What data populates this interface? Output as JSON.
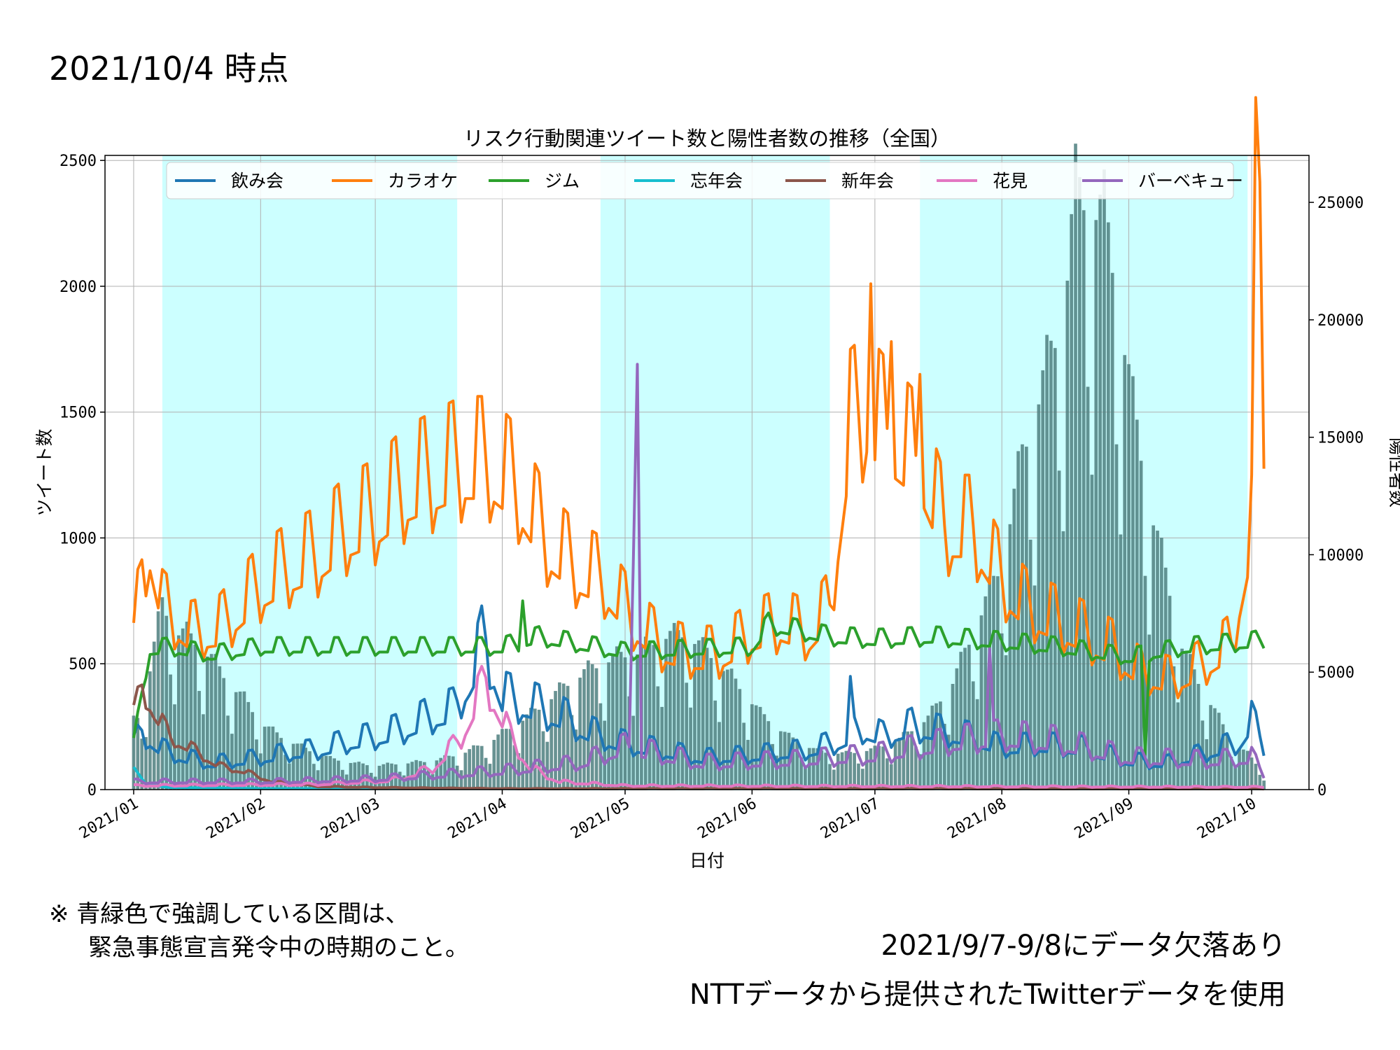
{
  "page": {
    "title": "2021/10/4 時点",
    "note_line1": "※ 青緑色で強調している区間は、",
    "note_line2": "緊急事態宣言発令中の時期のこと。",
    "missing_note": "2021/9/7-9/8にデータ欠落あり",
    "source_note": "NTTデータから提供されたTwitterデータを使用"
  },
  "chart_data": {
    "type": "line",
    "title": "リスク行動関連ツイート数と陽性者数の推移（全国）",
    "xlabel": "日付",
    "ylabel": "ツイート数",
    "ylabel_right": "陽性者数",
    "x_range": [
      "2020-12-25",
      "2021-10-15"
    ],
    "ylim": [
      0,
      2520
    ],
    "ylim_right": [
      0,
      27000
    ],
    "x_tick_labels": [
      "2021/01",
      "2021/02",
      "2021/03",
      "2021/04",
      "2021/05",
      "2021/06",
      "2021/07",
      "2021/08",
      "2021/09",
      "2021/10"
    ],
    "x_tick_dates": [
      "2021-01-01",
      "2021-02-01",
      "2021-03-01",
      "2021-04-01",
      "2021-05-01",
      "2021-06-01",
      "2021-07-01",
      "2021-08-01",
      "2021-09-01",
      "2021-10-01"
    ],
    "y_ticks": [
      0,
      500,
      1000,
      1500,
      2000,
      2500
    ],
    "y_ticks_right": [
      0,
      5000,
      10000,
      15000,
      20000,
      25000
    ],
    "grid": true,
    "legend_position": "top",
    "emergency_periods": [
      [
        "2021-01-08",
        "2021-03-21"
      ],
      [
        "2021-04-25",
        "2021-06-20"
      ],
      [
        "2021-07-12",
        "2021-09-30"
      ]
    ],
    "emergency_color": "#ccffff",
    "bar_color": "#4d7f7f",
    "positive_cases": {
      "name": "陽性者数",
      "keys": [
        [
          "2021-01-01",
          3000
        ],
        [
          "2021-01-03",
          3100
        ],
        [
          "2021-01-06",
          6000
        ],
        [
          "2021-01-08",
          7800
        ],
        [
          "2021-01-11",
          6600
        ],
        [
          "2021-01-14",
          6500
        ],
        [
          "2021-01-17",
          6000
        ],
        [
          "2021-01-20",
          5500
        ],
        [
          "2021-01-24",
          4500
        ],
        [
          "2021-01-28",
          3800
        ],
        [
          "2021-02-01",
          2800
        ],
        [
          "2021-02-06",
          2200
        ],
        [
          "2021-02-12",
          1700
        ],
        [
          "2021-02-18",
          1300
        ],
        [
          "2021-02-24",
          1100
        ],
        [
          "2021-03-01",
          1000
        ],
        [
          "2021-03-08",
          1100
        ],
        [
          "2021-03-15",
          1200
        ],
        [
          "2021-03-22",
          1500
        ],
        [
          "2021-03-29",
          2000
        ],
        [
          "2021-04-04",
          2700
        ],
        [
          "2021-04-10",
          3400
        ],
        [
          "2021-04-16",
          4300
        ],
        [
          "2021-04-22",
          5000
        ],
        [
          "2021-04-28",
          5500
        ],
        [
          "2021-05-05",
          5800
        ],
        [
          "2021-05-10",
          6400
        ],
        [
          "2021-05-16",
          6500
        ],
        [
          "2021-05-22",
          5600
        ],
        [
          "2021-05-28",
          4500
        ],
        [
          "2021-06-03",
          3200
        ],
        [
          "2021-06-10",
          2200
        ],
        [
          "2021-06-17",
          1600
        ],
        [
          "2021-06-24",
          1500
        ],
        [
          "2021-07-01",
          1700
        ],
        [
          "2021-07-07",
          2100
        ],
        [
          "2021-07-14",
          3000
        ],
        [
          "2021-07-20",
          4500
        ],
        [
          "2021-07-26",
          7000
        ],
        [
          "2021-08-01",
          9500
        ],
        [
          "2021-08-06",
          14000
        ],
        [
          "2021-08-11",
          17000
        ],
        [
          "2021-08-16",
          20000
        ],
        [
          "2021-08-19",
          25000
        ],
        [
          "2021-08-22",
          24500
        ],
        [
          "2021-08-26",
          24000
        ],
        [
          "2021-08-29",
          21000
        ],
        [
          "2021-09-02",
          16000
        ],
        [
          "2021-09-06",
          12000
        ],
        [
          "2021-09-10",
          9000
        ],
        [
          "2021-09-14",
          6000
        ],
        [
          "2021-09-18",
          4500
        ],
        [
          "2021-09-22",
          3300
        ],
        [
          "2021-09-26",
          2000
        ],
        [
          "2021-09-30",
          1500
        ],
        [
          "2021-10-04",
          700
        ]
      ],
      "weekday_factors": [
        0.7,
        0.55,
        1.0,
        1.05,
        1.1,
        1.05,
        1.0
      ]
    },
    "series": [
      {
        "name": "飲み会",
        "color": "#1f77b4",
        "keys": [
          [
            "2021-01-01",
            160
          ],
          [
            "2021-01-03",
            220
          ],
          [
            "2021-01-08",
            150
          ],
          [
            "2021-01-14",
            120
          ],
          [
            "2021-01-20",
            100
          ],
          [
            "2021-02-01",
            120
          ],
          [
            "2021-02-08",
            140
          ],
          [
            "2021-02-15",
            150
          ],
          [
            "2021-02-22",
            180
          ],
          [
            "2021-03-01",
            200
          ],
          [
            "2021-03-08",
            230
          ],
          [
            "2021-03-15",
            280
          ],
          [
            "2021-03-20",
            300
          ],
          [
            "2021-03-24",
            420
          ],
          [
            "2021-03-28",
            560
          ],
          [
            "2021-04-01",
            350
          ],
          [
            "2021-04-08",
            320
          ],
          [
            "2021-04-15",
            280
          ],
          [
            "2021-04-22",
            220
          ],
          [
            "2021-04-29",
            180
          ],
          [
            "2021-05-06",
            160
          ],
          [
            "2021-05-13",
            140
          ],
          [
            "2021-05-20",
            120
          ],
          [
            "2021-06-01",
            130
          ],
          [
            "2021-06-15",
            150
          ],
          [
            "2021-06-22",
            180
          ],
          [
            "2021-06-28",
            230
          ],
          [
            "2021-07-03",
            200
          ],
          [
            "2021-07-10",
            240
          ],
          [
            "2021-07-17",
            220
          ],
          [
            "2021-07-24",
            200
          ],
          [
            "2021-08-01",
            160
          ],
          [
            "2021-08-10",
            170
          ],
          [
            "2021-08-20",
            160
          ],
          [
            "2021-09-01",
            110
          ],
          [
            "2021-09-10",
            100
          ],
          [
            "2021-09-20",
            140
          ],
          [
            "2021-09-28",
            180
          ],
          [
            "2021-10-01",
            260
          ],
          [
            "2021-10-04",
            170
          ]
        ],
        "amp": 0.35,
        "spikes": [
          [
            "2021-03-27",
            730
          ],
          [
            "2021-06-25",
            450
          ]
        ]
      },
      {
        "name": "カラオケ",
        "color": "#ff7f0e",
        "keys": [
          [
            "2021-01-01",
            530
          ],
          [
            "2021-01-03",
            870
          ],
          [
            "2021-01-05",
            940
          ],
          [
            "2021-01-08",
            700
          ],
          [
            "2021-01-15",
            600
          ],
          [
            "2021-01-22",
            620
          ],
          [
            "2021-02-01",
            780
          ],
          [
            "2021-02-08",
            850
          ],
          [
            "2021-02-15",
            900
          ],
          [
            "2021-02-22",
            1000
          ],
          [
            "2021-03-01",
            1050
          ],
          [
            "2021-03-08",
            1150
          ],
          [
            "2021-03-15",
            1200
          ],
          [
            "2021-03-22",
            1250
          ],
          [
            "2021-03-29",
            1250
          ],
          [
            "2021-04-05",
            1150
          ],
          [
            "2021-04-12",
            950
          ],
          [
            "2021-04-19",
            850
          ],
          [
            "2021-04-26",
            800
          ],
          [
            "2021-05-03",
            650
          ],
          [
            "2021-05-10",
            550
          ],
          [
            "2021-05-17",
            520
          ],
          [
            "2021-05-24",
            520
          ],
          [
            "2021-06-01",
            600
          ],
          [
            "2021-06-08",
            640
          ],
          [
            "2021-06-15",
            600
          ],
          [
            "2021-06-20",
            700
          ],
          [
            "2021-06-25",
            1400
          ],
          [
            "2021-06-29",
            1450
          ],
          [
            "2021-07-05",
            1350
          ],
          [
            "2021-07-12",
            1250
          ],
          [
            "2021-07-18",
            1000
          ],
          [
            "2021-07-25",
            1000
          ],
          [
            "2021-08-01",
            800
          ],
          [
            "2021-08-07",
            700
          ],
          [
            "2021-08-14",
            650
          ],
          [
            "2021-08-21",
            600
          ],
          [
            "2021-08-28",
            540
          ],
          [
            "2021-09-04",
            450
          ],
          [
            "2021-09-12",
            420
          ],
          [
            "2021-09-19",
            480
          ],
          [
            "2021-09-26",
            560
          ],
          [
            "2021-10-01",
            1000
          ],
          [
            "2021-10-02",
            2200
          ],
          [
            "2021-10-03",
            2300
          ],
          [
            "2021-10-04",
            1500
          ]
        ],
        "amp": 0.25,
        "spikes": [
          [
            "2021-06-30",
            2010
          ],
          [
            "2021-07-05",
            1780
          ],
          [
            "2021-07-12",
            1650
          ]
        ]
      },
      {
        "name": "ジム",
        "color": "#2ca02c",
        "keys": [
          [
            "2021-01-01",
            190
          ],
          [
            "2021-01-03",
            380
          ],
          [
            "2021-01-05",
            550
          ],
          [
            "2021-01-10",
            560
          ],
          [
            "2021-01-20",
            530
          ],
          [
            "2021-02-01",
            560
          ],
          [
            "2021-03-01",
            560
          ],
          [
            "2021-04-01",
            560
          ],
          [
            "2021-04-10",
            600
          ],
          [
            "2021-05-01",
            540
          ],
          [
            "2021-06-01",
            560
          ],
          [
            "2021-06-05",
            650
          ],
          [
            "2021-06-20",
            600
          ],
          [
            "2021-07-01",
            590
          ],
          [
            "2021-07-15",
            600
          ],
          [
            "2021-08-01",
            580
          ],
          [
            "2021-08-15",
            560
          ],
          [
            "2021-09-01",
            520
          ],
          [
            "2021-09-15",
            560
          ],
          [
            "2021-10-01",
            580
          ],
          [
            "2021-10-04",
            590
          ]
        ],
        "amp": 0.08,
        "spikes": [
          [
            "2021-04-06",
            750
          ],
          [
            "2021-09-05",
            140
          ]
        ]
      },
      {
        "name": "忘年会",
        "color": "#17becf",
        "keys": [
          [
            "2021-01-01",
            90
          ],
          [
            "2021-01-04",
            20
          ],
          [
            "2021-01-10",
            8
          ],
          [
            "2021-02-01",
            4
          ],
          [
            "2021-10-04",
            3
          ]
        ],
        "amp": 0.0,
        "spikes": []
      },
      {
        "name": "新年会",
        "color": "#8c564b",
        "keys": [
          [
            "2021-01-01",
            280
          ],
          [
            "2021-01-03",
            400
          ],
          [
            "2021-01-06",
            300
          ],
          [
            "2021-01-10",
            200
          ],
          [
            "2021-01-16",
            150
          ],
          [
            "2021-01-22",
            90
          ],
          [
            "2021-01-28",
            70
          ],
          [
            "2021-02-04",
            30
          ],
          [
            "2021-02-15",
            12
          ],
          [
            "2021-03-01",
            8
          ],
          [
            "2021-04-01",
            4
          ],
          [
            "2021-10-04",
            3
          ]
        ],
        "amp": 0.2,
        "spikes": []
      },
      {
        "name": "花見",
        "color": "#e377c2",
        "keys": [
          [
            "2021-01-01",
            15
          ],
          [
            "2021-02-15",
            20
          ],
          [
            "2021-03-05",
            35
          ],
          [
            "2021-03-15",
            80
          ],
          [
            "2021-03-22",
            200
          ],
          [
            "2021-03-28",
            420
          ],
          [
            "2021-04-03",
            200
          ],
          [
            "2021-04-08",
            80
          ],
          [
            "2021-04-15",
            30
          ],
          [
            "2021-05-01",
            15
          ],
          [
            "2021-10-04",
            10
          ]
        ],
        "amp": 0.3,
        "spikes": [
          [
            "2021-03-27",
            490
          ]
        ]
      },
      {
        "name": "バーベキュー",
        "color": "#9467bd",
        "keys": [
          [
            "2021-01-01",
            30
          ],
          [
            "2021-02-01",
            30
          ],
          [
            "2021-03-01",
            40
          ],
          [
            "2021-04-01",
            70
          ],
          [
            "2021-04-20",
            100
          ],
          [
            "2021-05-01",
            160
          ],
          [
            "2021-05-20",
            100
          ],
          [
            "2021-06-10",
            110
          ],
          [
            "2021-07-01",
            130
          ],
          [
            "2021-07-20",
            180
          ],
          [
            "2021-08-01",
            200
          ],
          [
            "2021-08-15",
            180
          ],
          [
            "2021-09-01",
            120
          ],
          [
            "2021-09-20",
            110
          ],
          [
            "2021-10-01",
            120
          ],
          [
            "2021-10-04",
            60
          ]
        ],
        "amp": 0.4,
        "spikes": [
          [
            "2021-05-04",
            1690
          ],
          [
            "2021-05-03",
            900
          ],
          [
            "2021-07-29",
            560
          ]
        ]
      }
    ]
  }
}
